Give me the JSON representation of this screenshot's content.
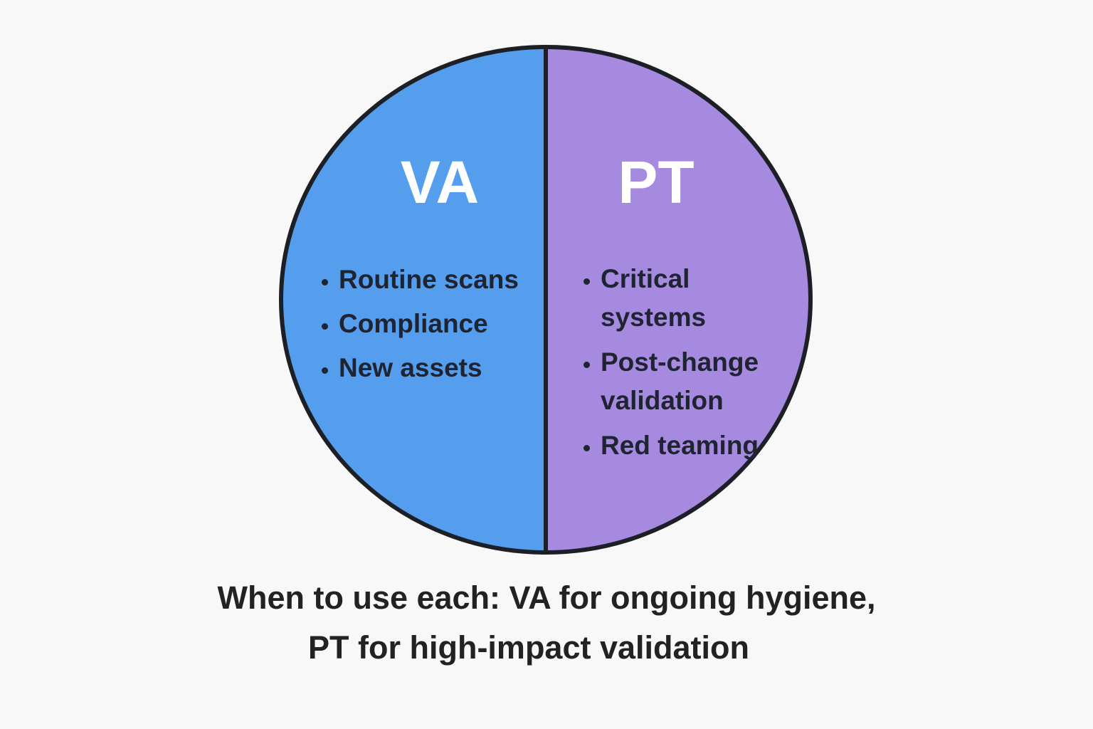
{
  "diagram": {
    "left": {
      "title": "VA",
      "items": [
        "Routine scans",
        "Compliance",
        "New assets"
      ]
    },
    "right": {
      "title": "PT",
      "items": [
        "Critical systems",
        "Post-change validation",
        "Red teaming"
      ]
    },
    "caption": [
      "When to use each: VA for ongoing hygiene,",
      "PT for high-impact validation"
    ]
  }
}
